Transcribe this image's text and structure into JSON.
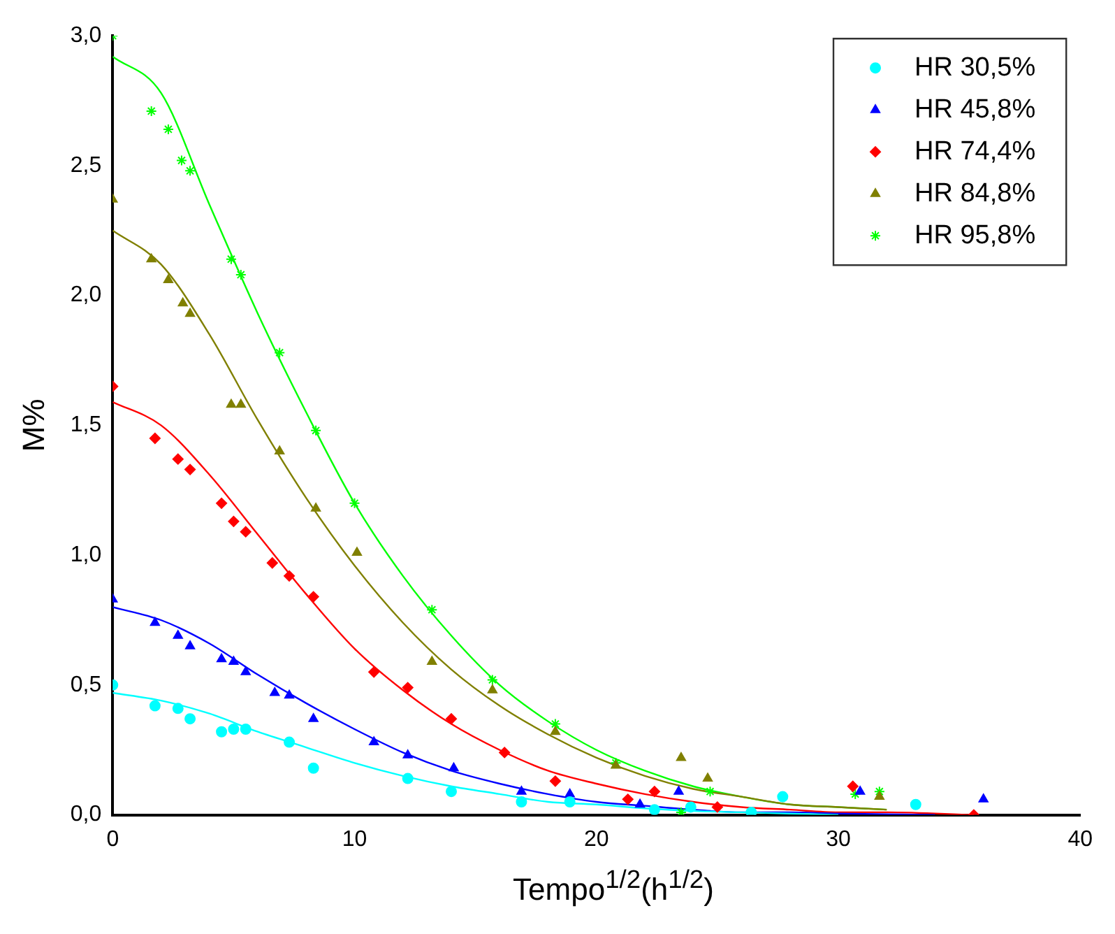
{
  "chart_data": {
    "type": "scatter",
    "xlabel": "Tempo$^{1/2}$(h$^{1/2}$)",
    "ylabel": "M%",
    "xlim": [
      0,
      40
    ],
    "ylim": [
      0,
      3.0
    ],
    "xticks": [
      0,
      10,
      20,
      30,
      40
    ],
    "yticks": [
      {
        "value": 0,
        "label": "0,0"
      },
      {
        "value": 0.5,
        "label": "0,5"
      },
      {
        "value": 1,
        "label": "1,0"
      },
      {
        "value": 1.5,
        "label": "1,5"
      },
      {
        "value": 2,
        "label": "2,0"
      },
      {
        "value": 2.5,
        "label": "2,5"
      },
      {
        "value": 3,
        "label": "3,0"
      }
    ],
    "grid": false,
    "legend": "top right",
    "series": [
      {
        "name": "HR 30,5%",
        "color": "#00ffff",
        "marker": "circle",
        "x": [
          0,
          1.75,
          2.7,
          3.2,
          4.5,
          5.0,
          5.5,
          7.3,
          8.3,
          12.2,
          14.0,
          16.9,
          18.9,
          22.4,
          23.9,
          26.4,
          27.7,
          33.2
        ],
        "values": [
          0.5,
          0.42,
          0.41,
          0.37,
          0.32,
          0.33,
          0.33,
          0.28,
          0.18,
          0.14,
          0.09,
          0.05,
          0.05,
          0.02,
          0.03,
          0.01,
          0.07,
          0.04
        ]
      },
      {
        "name": "HR 45,8%",
        "color": "#0000ff",
        "marker": "triangle",
        "x": [
          0,
          1.75,
          2.7,
          3.2,
          4.5,
          5.0,
          5.5,
          6.7,
          7.3,
          8.3,
          10.8,
          12.2,
          14.1,
          16.9,
          18.9,
          21.8,
          23.4,
          30.9,
          36.0
        ],
        "values": [
          0.83,
          0.74,
          0.69,
          0.65,
          0.6,
          0.59,
          0.55,
          0.47,
          0.46,
          0.37,
          0.28,
          0.23,
          0.18,
          0.09,
          0.08,
          0.04,
          0.09,
          0.09,
          0.06
        ]
      },
      {
        "name": "HR 74,4%",
        "color": "#ff0000",
        "marker": "diamond",
        "x": [
          0,
          1.75,
          2.7,
          3.2,
          4.5,
          5.0,
          5.5,
          6.6,
          7.3,
          8.3,
          10.8,
          12.2,
          14.0,
          16.2,
          18.3,
          21.3,
          22.4,
          25.0,
          30.6,
          35.6
        ],
        "values": [
          1.65,
          1.45,
          1.37,
          1.33,
          1.2,
          1.13,
          1.09,
          0.97,
          0.92,
          0.84,
          0.55,
          0.49,
          0.37,
          0.24,
          0.13,
          0.06,
          0.09,
          0.03,
          0.11,
          0.0
        ]
      },
      {
        "name": "HR 84,8%",
        "color": "#808000",
        "marker": "triangle",
        "x": [
          0,
          1.6,
          2.3,
          2.9,
          3.2,
          4.9,
          5.3,
          6.9,
          8.4,
          10.1,
          13.2,
          15.7,
          18.3,
          20.8,
          23.5,
          24.6,
          31.7
        ],
        "values": [
          2.37,
          2.14,
          2.06,
          1.97,
          1.93,
          1.58,
          1.58,
          1.4,
          1.18,
          1.01,
          0.59,
          0.48,
          0.32,
          0.19,
          0.22,
          0.14,
          0.07
        ]
      },
      {
        "name": "HR 95,8%",
        "color": "#00ff00",
        "marker": "cross",
        "x": [
          0,
          1.6,
          2.3,
          2.85,
          3.2,
          4.9,
          5.3,
          6.9,
          8.4,
          10.0,
          13.2,
          15.7,
          18.3,
          20.8,
          23.5,
          24.7,
          30.7,
          31.7
        ],
        "values": [
          3.0,
          2.71,
          2.64,
          2.52,
          2.48,
          2.14,
          2.08,
          1.78,
          1.48,
          1.2,
          0.79,
          0.52,
          0.35,
          0.2,
          0.01,
          0.09,
          0.08,
          0.09
        ]
      },
      {
        "type": "line",
        "color": "#00ffff",
        "x": [
          0,
          2,
          4,
          6,
          8,
          10,
          12,
          14,
          16,
          18,
          20,
          22,
          24,
          26,
          28,
          30
        ],
        "values": [
          0.47,
          0.44,
          0.39,
          0.32,
          0.26,
          0.2,
          0.15,
          0.11,
          0.08,
          0.05,
          0.04,
          0.025,
          0.015,
          0.01,
          0.005,
          0.0
        ]
      },
      {
        "type": "line",
        "color": "#0000ff",
        "x": [
          0,
          2,
          4,
          6,
          8,
          10,
          12,
          14,
          16,
          18,
          20,
          22,
          24,
          26,
          28,
          30,
          34
        ],
        "values": [
          0.8,
          0.75,
          0.66,
          0.54,
          0.43,
          0.33,
          0.24,
          0.17,
          0.12,
          0.08,
          0.05,
          0.035,
          0.02,
          0.01,
          0.01,
          0.005,
          0.0
        ]
      },
      {
        "type": "line",
        "color": "#ff0000",
        "x": [
          0,
          2,
          4,
          6,
          8,
          10,
          12,
          14,
          16,
          18,
          20,
          22,
          24,
          26,
          28,
          30,
          32,
          35.6
        ],
        "values": [
          1.59,
          1.5,
          1.31,
          1.08,
          0.85,
          0.64,
          0.48,
          0.35,
          0.25,
          0.17,
          0.12,
          0.08,
          0.05,
          0.03,
          0.02,
          0.01,
          0.01,
          0.0
        ]
      },
      {
        "type": "line",
        "color": "#808000",
        "x": [
          0,
          2,
          4,
          6,
          8,
          10,
          12,
          14,
          16,
          18,
          20,
          22,
          24,
          26,
          28,
          30,
          32
        ],
        "values": [
          2.25,
          2.12,
          1.85,
          1.52,
          1.22,
          0.96,
          0.74,
          0.56,
          0.42,
          0.31,
          0.22,
          0.15,
          0.1,
          0.07,
          0.04,
          0.03,
          0.02
        ]
      },
      {
        "type": "line",
        "color": "#00ff00",
        "x": [
          0,
          2,
          4,
          6,
          8,
          10,
          12,
          14,
          16,
          18,
          20,
          22,
          24,
          26,
          28,
          30,
          32
        ],
        "values": [
          2.92,
          2.78,
          2.35,
          1.93,
          1.55,
          1.2,
          0.92,
          0.69,
          0.5,
          0.36,
          0.25,
          0.17,
          0.11,
          0.07,
          0.04,
          0.03,
          0.02
        ]
      }
    ]
  }
}
